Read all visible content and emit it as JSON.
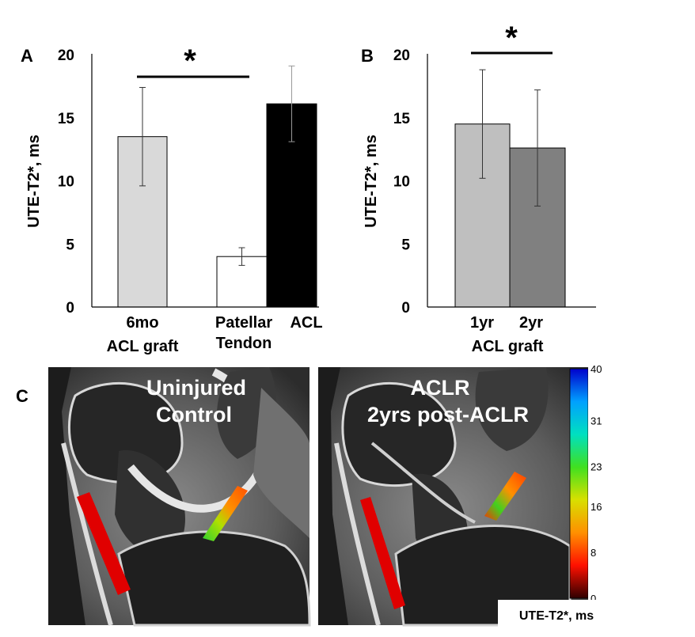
{
  "chart_data": [
    {
      "type": "bar",
      "panel_label": "A",
      "ylabel": "UTE-T2*, ms",
      "ylim": [
        0,
        20
      ],
      "yticks": [
        "0",
        "5",
        "10",
        "15",
        "20"
      ],
      "categories": [
        "6mo ACL graft",
        "Patellar Tendon",
        "ACL"
      ],
      "category_lines": [
        [
          "6mo",
          "ACL graft"
        ],
        [
          "Patellar",
          "Tendon"
        ],
        [
          "ACL"
        ]
      ],
      "values": [
        13.5,
        4.0,
        16.1
      ],
      "error": [
        3.9,
        0.7,
        3.0
      ],
      "colors": [
        "#d9d9d9",
        "#ffffff",
        "#000000"
      ],
      "significance": "*"
    },
    {
      "type": "bar",
      "panel_label": "B",
      "ylabel": "UTE-T2*, ms",
      "ylim": [
        0,
        20
      ],
      "yticks": [
        "0",
        "5",
        "10",
        "15",
        "20"
      ],
      "categories": [
        "1yr",
        "2yr"
      ],
      "group_label": "ACL graft",
      "values": [
        14.5,
        12.6
      ],
      "error": [
        4.3,
        4.6
      ],
      "colors": [
        "#bfbfbf",
        "#808080"
      ],
      "significance": "*"
    }
  ],
  "panel_c": {
    "panel_label": "C",
    "left_image": {
      "title_lines": [
        "Uninjured",
        "Control"
      ]
    },
    "right_image": {
      "title_lines": [
        "ACLR",
        "2yrs post-ACLR"
      ]
    },
    "colorbar": {
      "ticks": [
        "40",
        "31",
        "23",
        "16",
        "8",
        "0"
      ],
      "unit": "UTE-T2*, ms",
      "stops": [
        "#0000cc",
        "#00a0ff",
        "#00e0c0",
        "#40e020",
        "#d8e000",
        "#ff9000",
        "#ff1000",
        "#300000"
      ]
    }
  }
}
